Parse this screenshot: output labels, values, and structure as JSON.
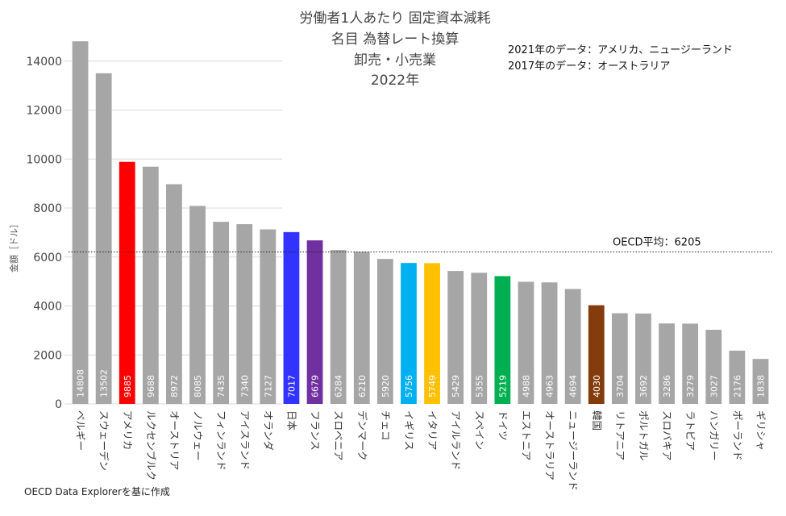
{
  "chart_data": {
    "type": "bar",
    "title_lines": [
      "労働者1人あたり 固定資本減耗",
      "名目 為替レート換算",
      "卸売・小売業",
      "2022年"
    ],
    "ylabel": "金額［ドル］",
    "ylim": [
      0,
      16000
    ],
    "yticks": [
      0,
      2000,
      4000,
      6000,
      8000,
      10000,
      12000,
      14000
    ],
    "grid": true,
    "notes": [
      "2021年のデータ：アメリカ、ニュージーランド",
      "2017年のデータ：オーストラリア"
    ],
    "average": {
      "label": "OECD平均：6205",
      "value": 6205
    },
    "source": "OECD Data Explorerを基に作成",
    "categories": [
      "ベルギー",
      "スウェーデン",
      "アメリカ",
      "ルクセンブルク",
      "オーストリア",
      "ノルウェー",
      "フィンランド",
      "アイスランド",
      "オランダ",
      "日本",
      "フランス",
      "スロベニア",
      "デンマーク",
      "チェコ",
      "イギリス",
      "イタリア",
      "アイルランド",
      "スペイン",
      "ドイツ",
      "エストニア",
      "オーストラリア",
      "ニュージーランド",
      "韓国",
      "リトアニア",
      "ポルトガル",
      "スロバキア",
      "ラトビア",
      "ハンガリー",
      "ポーランド",
      "ギリシャ"
    ],
    "values": [
      14808,
      13502,
      9885,
      9688,
      8972,
      8085,
      7435,
      7340,
      7127,
      7017,
      6679,
      6284,
      6210,
      5920,
      5756,
      5749,
      5429,
      5355,
      5219,
      4988,
      4963,
      4694,
      4030,
      3704,
      3692,
      3286,
      3279,
      3027,
      2176,
      1838
    ],
    "colors": [
      "#a6a6a6",
      "#a6a6a6",
      "#ff0000",
      "#a6a6a6",
      "#a6a6a6",
      "#a6a6a6",
      "#a6a6a6",
      "#a6a6a6",
      "#a6a6a6",
      "#3333ff",
      "#7030a0",
      "#a6a6a6",
      "#a6a6a6",
      "#a6a6a6",
      "#00b0f0",
      "#ffc000",
      "#a6a6a6",
      "#a6a6a6",
      "#00b050",
      "#a6a6a6",
      "#a6a6a6",
      "#a6a6a6",
      "#843c0c",
      "#a6a6a6",
      "#a6a6a6",
      "#a6a6a6",
      "#a6a6a6",
      "#a6a6a6",
      "#a6a6a6",
      "#a6a6a6"
    ]
  }
}
